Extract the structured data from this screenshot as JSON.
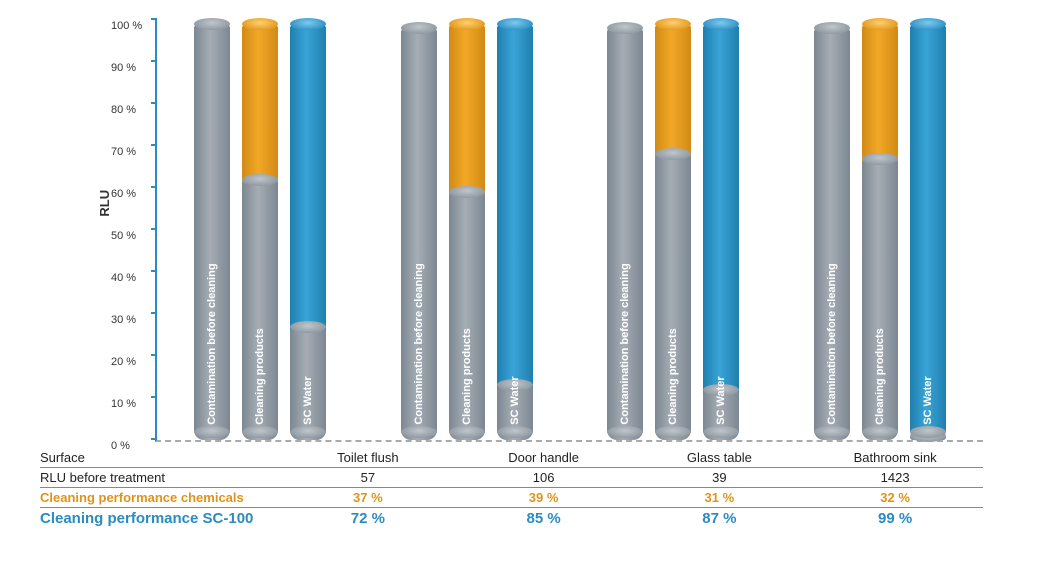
{
  "chart": {
    "type": "bar",
    "ylabel": "RLU",
    "ylim": [
      0,
      100
    ],
    "ytick_step": 10,
    "ytick_suffix": " %",
    "axis_color": "#2f89c4",
    "colors": {
      "baseline": "#8b949d",
      "cleaning_products": "#e0931a",
      "sc_water": "#2a8cc1"
    },
    "series_labels": {
      "baseline": "Contamination before cleaning",
      "cleaning_products": "Cleaning products",
      "sc_water": "SC Water"
    },
    "categories": [
      "Toilet flush",
      "Door handle",
      "Glass table",
      "Bathroom sink"
    ],
    "baseline_pct": [
      99,
      98,
      98,
      98
    ],
    "cleaning_products_top_pct": [
      99,
      99,
      99,
      99
    ],
    "cleaning_products_grey_pct": [
      62,
      59,
      68,
      67
    ],
    "sc_water_top_pct": [
      99,
      99,
      99,
      99
    ],
    "sc_water_grey_pct": [
      27,
      13,
      12,
      1
    ]
  },
  "table": {
    "rows": [
      {
        "label": "Surface",
        "values": [
          "Toilet flush",
          "Door handle",
          "Glass table",
          "Bathroom sink"
        ],
        "style": "c-black"
      },
      {
        "label": "RLU before treatment",
        "values": [
          "57",
          "106",
          "39",
          "1423"
        ],
        "style": "c-black"
      },
      {
        "label": "Cleaning performance chemicals",
        "values": [
          "37 %",
          "39 %",
          "31 %",
          "32 %"
        ],
        "style": "c-orange"
      },
      {
        "label": "Cleaning performance  SC-100",
        "values": [
          "72 %",
          "85 %",
          "87 %",
          "99 %"
        ],
        "style": "c-blue"
      }
    ]
  }
}
